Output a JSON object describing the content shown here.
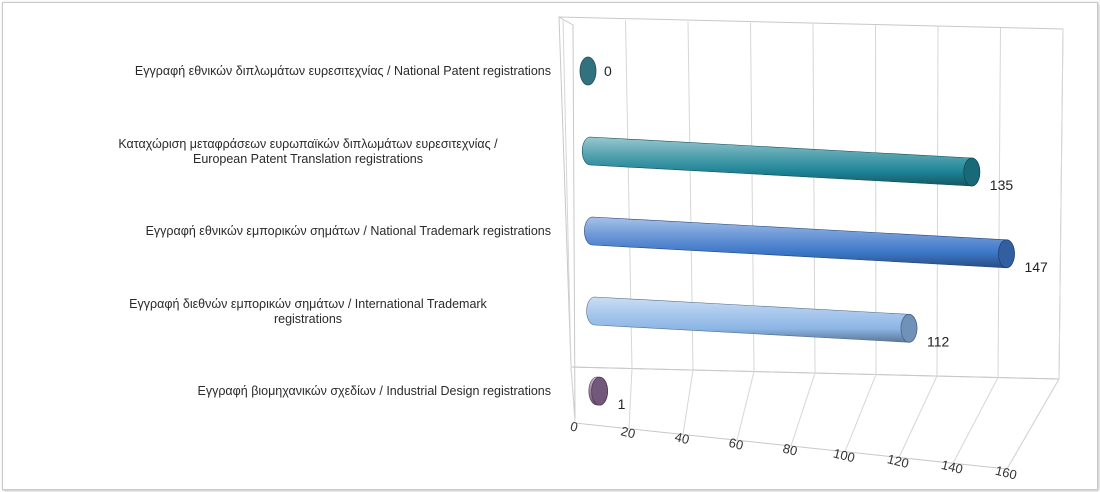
{
  "chart_data": {
    "type": "bar",
    "orientation": "horizontal",
    "style": "3d-cylinder",
    "categories": [
      [
        "Εγγραφή  εθνικών διπλωμάτων ευρεσιτεχνίας / National Patent registrations"
      ],
      [
        "Καταχώριση μεταφράσεων ευρωπαϊκών διπλωμάτων ευρεσιτεχνίας /",
        "European Patent Translation registrations"
      ],
      [
        "Εγγραφή  εθνικών εμπορικών σημάτων / National Trademark registrations"
      ],
      [
        "Εγγραφή  διεθνών εμπορικών σημάτων / International Trademark",
        "registrations"
      ],
      [
        "Εγγραφή  βιομηχανικών σχεδίων / Industrial Design registrations"
      ]
    ],
    "values": [
      0,
      135,
      147,
      112,
      1
    ],
    "value_labels": [
      "0",
      "135",
      "147",
      "112",
      "1"
    ],
    "colors": [
      "#3f8e9f",
      "#1f8597",
      "#3d77c9",
      "#8cb6e6",
      "#8f6e98"
    ],
    "xlim": [
      0,
      160
    ],
    "xticks": [
      "0",
      "20",
      "40",
      "60",
      "80",
      "100",
      "120",
      "140",
      "160"
    ],
    "grid": true,
    "legend": "none"
  }
}
